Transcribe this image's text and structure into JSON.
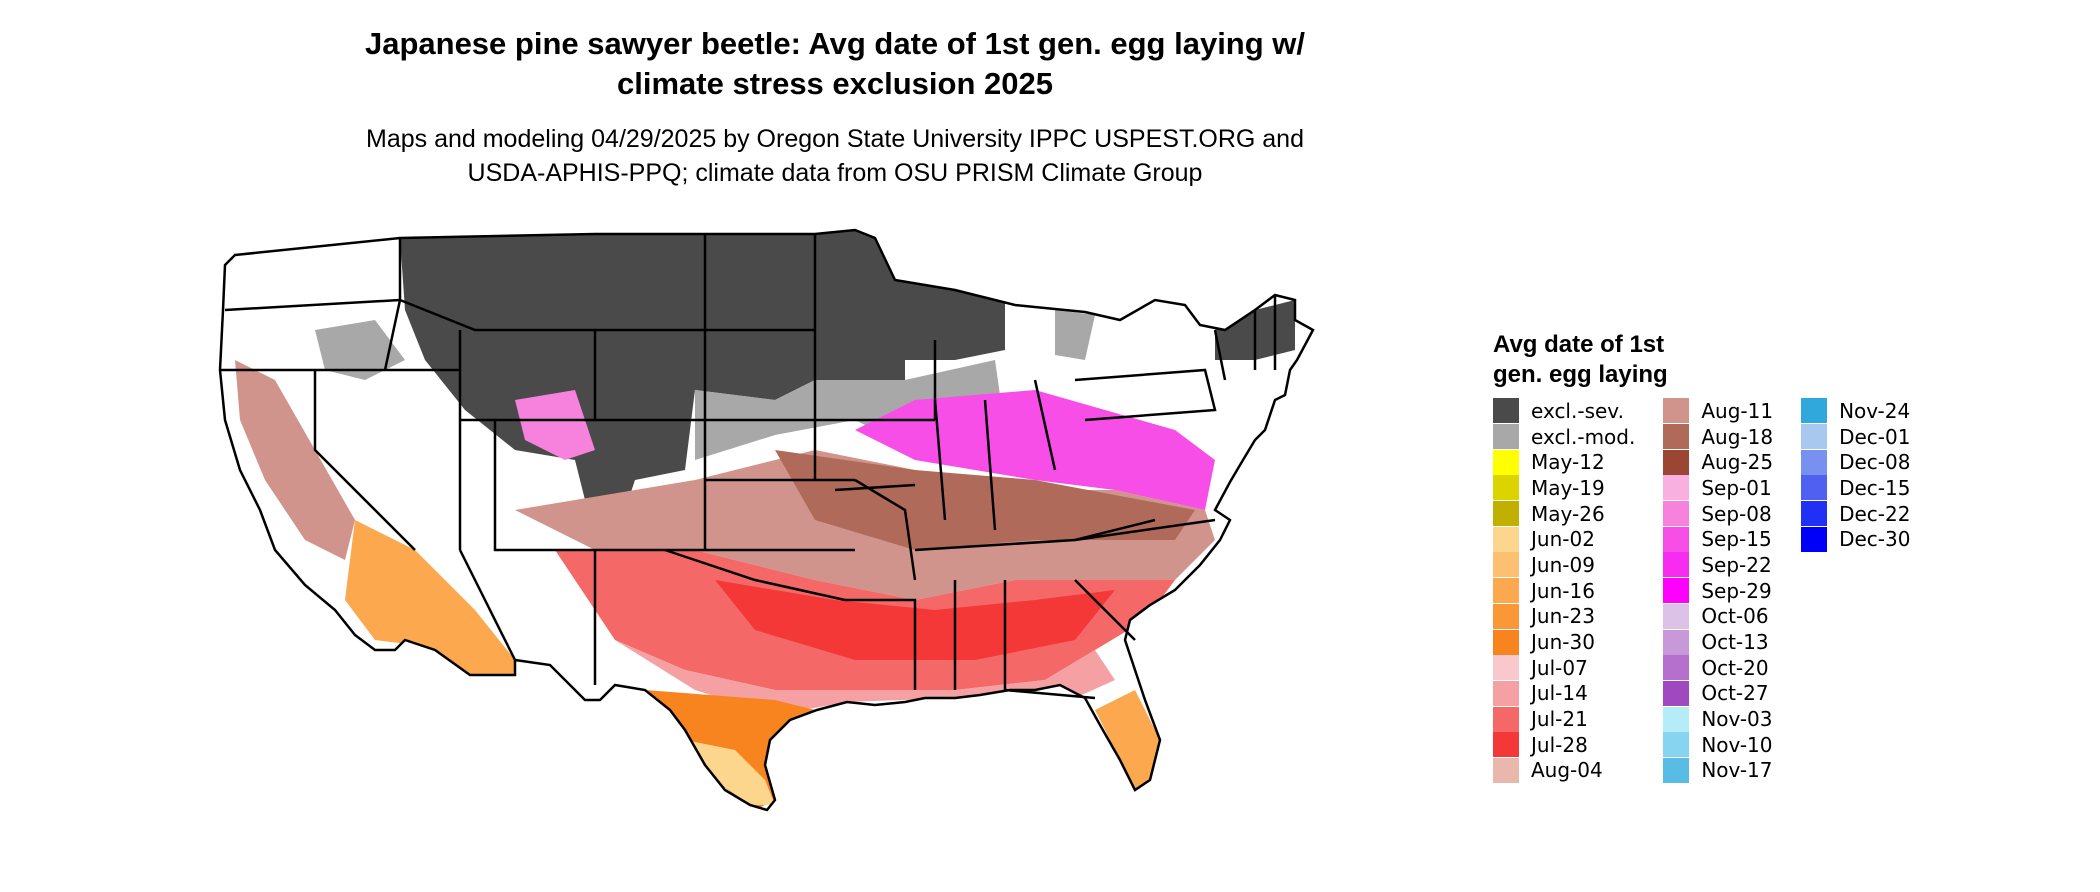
{
  "title_line1": "Japanese pine sawyer beetle: Avg date of 1st gen. egg laying w/",
  "title_line2": "climate stress exclusion 2025",
  "subtitle_line1": "Maps and modeling 04/29/2025 by Oregon State University IPPC USPEST.ORG and",
  "subtitle_line2": "USDA-APHIS-PPQ; climate data from OSU PRISM Climate Group",
  "legend": {
    "title_line1": "Avg date of 1st",
    "title_line2": "gen. egg laying",
    "columns": [
      [
        {
          "label": "excl.-sev.",
          "color": "#4a4a4a"
        },
        {
          "label": "excl.-mod.",
          "color": "#a8a8a8"
        },
        {
          "label": "May-12",
          "color": "#ffff00"
        },
        {
          "label": "May-19",
          "color": "#dcd400"
        },
        {
          "label": "May-26",
          "color": "#c0b000"
        },
        {
          "label": "Jun-02",
          "color": "#fdd68e"
        },
        {
          "label": "Jun-09",
          "color": "#fcc070"
        },
        {
          "label": "Jun-16",
          "color": "#fba84e"
        },
        {
          "label": "Jun-23",
          "color": "#fa9838"
        },
        {
          "label": "Jun-30",
          "color": "#f88420"
        },
        {
          "label": "Jul-07",
          "color": "#f8c8cc"
        },
        {
          "label": "Jul-14",
          "color": "#f5a0a2"
        },
        {
          "label": "Jul-21",
          "color": "#f56868"
        },
        {
          "label": "Jul-28",
          "color": "#f43838"
        },
        {
          "label": "Aug-04",
          "color": "#e8b8ac"
        }
      ],
      [
        {
          "label": "Aug-11",
          "color": "#d0948c"
        },
        {
          "label": "Aug-18",
          "color": "#b06a5a"
        },
        {
          "label": "Aug-25",
          "color": "#9a4632"
        },
        {
          "label": "Sep-01",
          "color": "#f8b0e0"
        },
        {
          "label": "Sep-08",
          "color": "#f682de"
        },
        {
          "label": "Sep-15",
          "color": "#f64ee6"
        },
        {
          "label": "Sep-22",
          "color": "#f82cf0"
        },
        {
          "label": "Sep-29",
          "color": "#ff00ff"
        },
        {
          "label": "Oct-06",
          "color": "#dcc2e6"
        },
        {
          "label": "Oct-13",
          "color": "#c898d8"
        },
        {
          "label": "Oct-20",
          "color": "#b470cc"
        },
        {
          "label": "Oct-27",
          "color": "#a048c0"
        },
        {
          "label": "Nov-03",
          "color": "#b4ecf8"
        },
        {
          "label": "Nov-10",
          "color": "#86d4f0"
        },
        {
          "label": "Nov-17",
          "color": "#58bce4"
        }
      ],
      [
        {
          "label": "Nov-24",
          "color": "#30a8dc"
        },
        {
          "label": "Dec-01",
          "color": "#a8c8f0"
        },
        {
          "label": "Dec-08",
          "color": "#7890f0"
        },
        {
          "label": "Dec-15",
          "color": "#5060f0"
        },
        {
          "label": "Dec-22",
          "color": "#2030f4"
        },
        {
          "label": "Dec-30",
          "color": "#0000f8"
        }
      ]
    ]
  }
}
